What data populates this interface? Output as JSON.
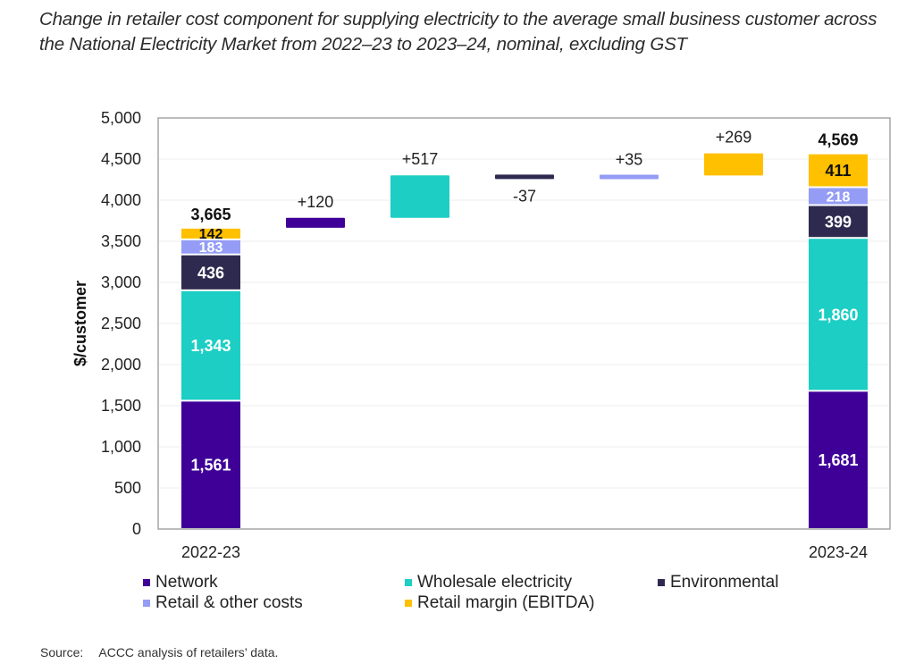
{
  "title": "Change in retailer cost component for supplying electricity to the average small business customer across the National Electricity Market from 2022–23 to 2023–24, nominal, excluding GST",
  "source": {
    "label": "Source:",
    "text": "ACCC analysis of retailers’ data."
  },
  "colors": {
    "network": "#3f0098",
    "wholesale": "#1ccec4",
    "environmental": "#2e2a4f",
    "retail_other": "#949cf5",
    "margin": "#ffc000"
  },
  "chart_data": {
    "type": "bar",
    "subtype": "waterfall-stacked",
    "title": "Change in retailer cost component for supplying electricity to the average small business customer across the National Electricity Market from 2022–23 to 2023–24, nominal, excluding GST",
    "xlabel": "",
    "ylabel": "$/customer",
    "ylim": [
      0,
      5000
    ],
    "yticks": [
      0,
      500,
      1000,
      1500,
      2000,
      2500,
      3000,
      3500,
      4000,
      4500,
      5000
    ],
    "ytick_labels": [
      "0",
      "500",
      "1,000",
      "1,500",
      "2,000",
      "2,500",
      "3,000",
      "3,500",
      "4,000",
      "4,500",
      "5,000"
    ],
    "grid": true,
    "legend_position": "bottom",
    "categories": [
      "2022-23",
      "",
      "",
      "",
      "",
      "",
      "2023-24"
    ],
    "series": [
      {
        "name": "Network",
        "key": "network"
      },
      {
        "name": "Wholesale electricity",
        "key": "wholesale"
      },
      {
        "name": "Environmental",
        "key": "environmental"
      },
      {
        "name": "Retail & other costs",
        "key": "retail_other"
      },
      {
        "name": "Retail margin (EBITDA)",
        "key": "margin"
      }
    ],
    "stacks": [
      {
        "category": "2022-23",
        "total": 3665,
        "total_label": "3,665",
        "segments": [
          {
            "key": "network",
            "value": 1561,
            "label": "1,561"
          },
          {
            "key": "wholesale",
            "value": 1343,
            "label": "1,343"
          },
          {
            "key": "environmental",
            "value": 436,
            "label": "436"
          },
          {
            "key": "retail_other",
            "value": 183,
            "label": "183"
          },
          {
            "key": "margin",
            "value": 142,
            "label": "142"
          }
        ]
      },
      {
        "category": "2023-24",
        "total": 4569,
        "total_label": "4,569",
        "segments": [
          {
            "key": "network",
            "value": 1681,
            "label": "1,681"
          },
          {
            "key": "wholesale",
            "value": 1860,
            "label": "1,860"
          },
          {
            "key": "environmental",
            "value": 399,
            "label": "399"
          },
          {
            "key": "retail_other",
            "value": 218,
            "label": "218"
          },
          {
            "key": "margin",
            "value": 411,
            "label": "411"
          }
        ]
      }
    ],
    "changes": [
      {
        "key": "network",
        "value": 120,
        "label": "+120"
      },
      {
        "key": "wholesale",
        "value": 517,
        "label": "+517"
      },
      {
        "key": "environmental",
        "value": -37,
        "label": "-37"
      },
      {
        "key": "retail_other",
        "value": 35,
        "label": "+35"
      },
      {
        "key": "margin",
        "value": 269,
        "label": "+269"
      }
    ]
  }
}
